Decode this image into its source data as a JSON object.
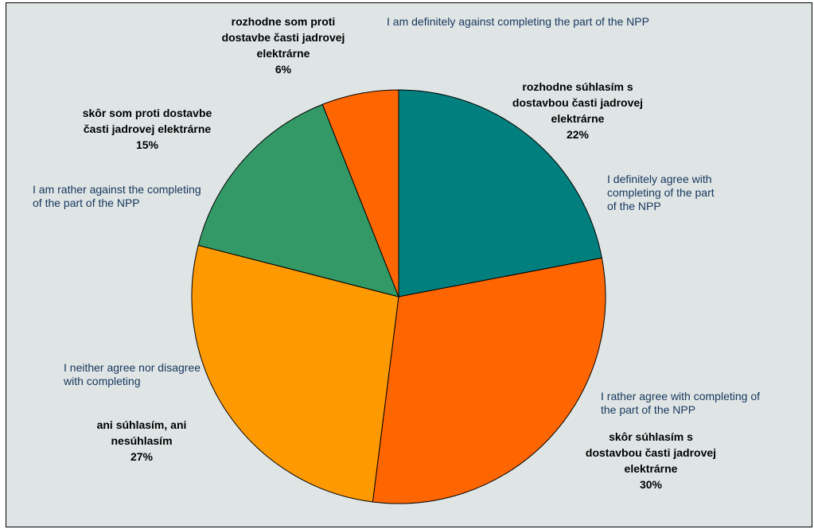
{
  "chart_data": {
    "type": "pie",
    "title": "",
    "start_angle_deg": 0,
    "direction": "clockwise",
    "slices": [
      {
        "label": "rozhodne súhlasím s dostavbou časti jadrovej elektrárne",
        "label_lines": [
          "rozhodne súhlasím s",
          "dostavbou časti jadrovej",
          "elektrárne"
        ],
        "value": 22,
        "value_label": "22%",
        "translation": "I definitely agree with completing of the part of the NPP",
        "translation_lines": [
          "I definitely agree with",
          "completing of the part",
          "of the NPP"
        ],
        "color": "#007f7f"
      },
      {
        "label": "skôr súhlasím s dostavbou časti jadrovej elektrárne",
        "label_lines": [
          "skôr súhlasím s",
          "dostavbou časti jadrovej",
          "elektrárne"
        ],
        "value": 30,
        "value_label": "30%",
        "translation": "I rather agree with completing of the part of the NPP",
        "translation_lines": [
          "I rather agree with completing of",
          "the part of the NPP"
        ],
        "color": "#ff6600"
      },
      {
        "label": "ani súhlasím, ani nesúhlasím",
        "label_lines": [
          "ani súhlasím, ani",
          "nesúhlasím"
        ],
        "value": 27,
        "value_label": "27%",
        "translation": "I neither agree nor disagree with completing",
        "translation_lines": [
          "I neither agree nor disagree",
          "with completing"
        ],
        "color": "#ff9900"
      },
      {
        "label": "skôr som proti dostavbe časti jadrovej elektrárne",
        "label_lines": [
          "skôr som proti dostavbe",
          "časti jadrovej elektrárne"
        ],
        "value": 15,
        "value_label": "15%",
        "translation": "I am rather against the completing of the part of the NPP",
        "translation_lines": [
          "I am rather against the completing",
          "of the part of the NPP"
        ],
        "color": "#339966"
      },
      {
        "label": "rozhodne som proti dostavbe časti jadrovej elektrárne",
        "label_lines": [
          "rozhodne som proti",
          "dostavbe časti jadrovej",
          "elektrárne"
        ],
        "value": 6,
        "value_label": "6%",
        "translation": "I am definitely against completing the part of the NPP",
        "translation_lines": [
          "I am definitely against completing the part of the NPP"
        ],
        "color": "#ff6600"
      }
    ]
  }
}
